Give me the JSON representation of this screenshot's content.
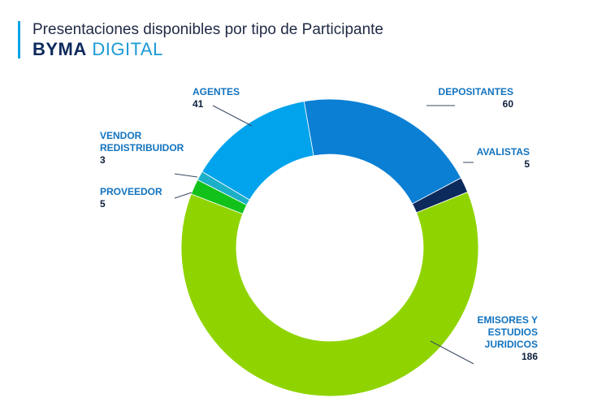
{
  "header": {
    "title": "Presentaciones disponibles por tipo de Participante",
    "brand_bold": "BYMA",
    "brand_light": "DIGITAL"
  },
  "chart_data": {
    "type": "pie",
    "variant": "donut",
    "title": "Presentaciones disponibles por tipo de Participante",
    "categories": [
      "DEPOSITANTES",
      "AVALISTAS",
      "EMISORES Y ESTUDIOS JURIDICOS",
      "PROVEEDOR",
      "VENDOR REDISTRIBUIDOR",
      "AGENTES"
    ],
    "values": [
      60,
      5,
      186,
      5,
      3,
      41
    ],
    "colors": [
      "#0a7fd4",
      "#0d2a5c",
      "#8fd400",
      "#12c21a",
      "#1bb0c8",
      "#00a3ec"
    ],
    "labels": [
      {
        "lines": [
          "DEPOSITANTES"
        ],
        "value": "60"
      },
      {
        "lines": [
          "AVALISTAS"
        ],
        "value": "5"
      },
      {
        "lines": [
          "EMISORES Y",
          "ESTUDIOS",
          "JURIDICOS"
        ],
        "value": "186"
      },
      {
        "lines": [
          "PROVEEDOR"
        ],
        "value": "5"
      },
      {
        "lines": [
          "VENDOR",
          "REDISTRIBUIDOR"
        ],
        "value": "3"
      },
      {
        "lines": [
          "AGENTES"
        ],
        "value": "41"
      }
    ],
    "start_angle_deg": 350
  }
}
